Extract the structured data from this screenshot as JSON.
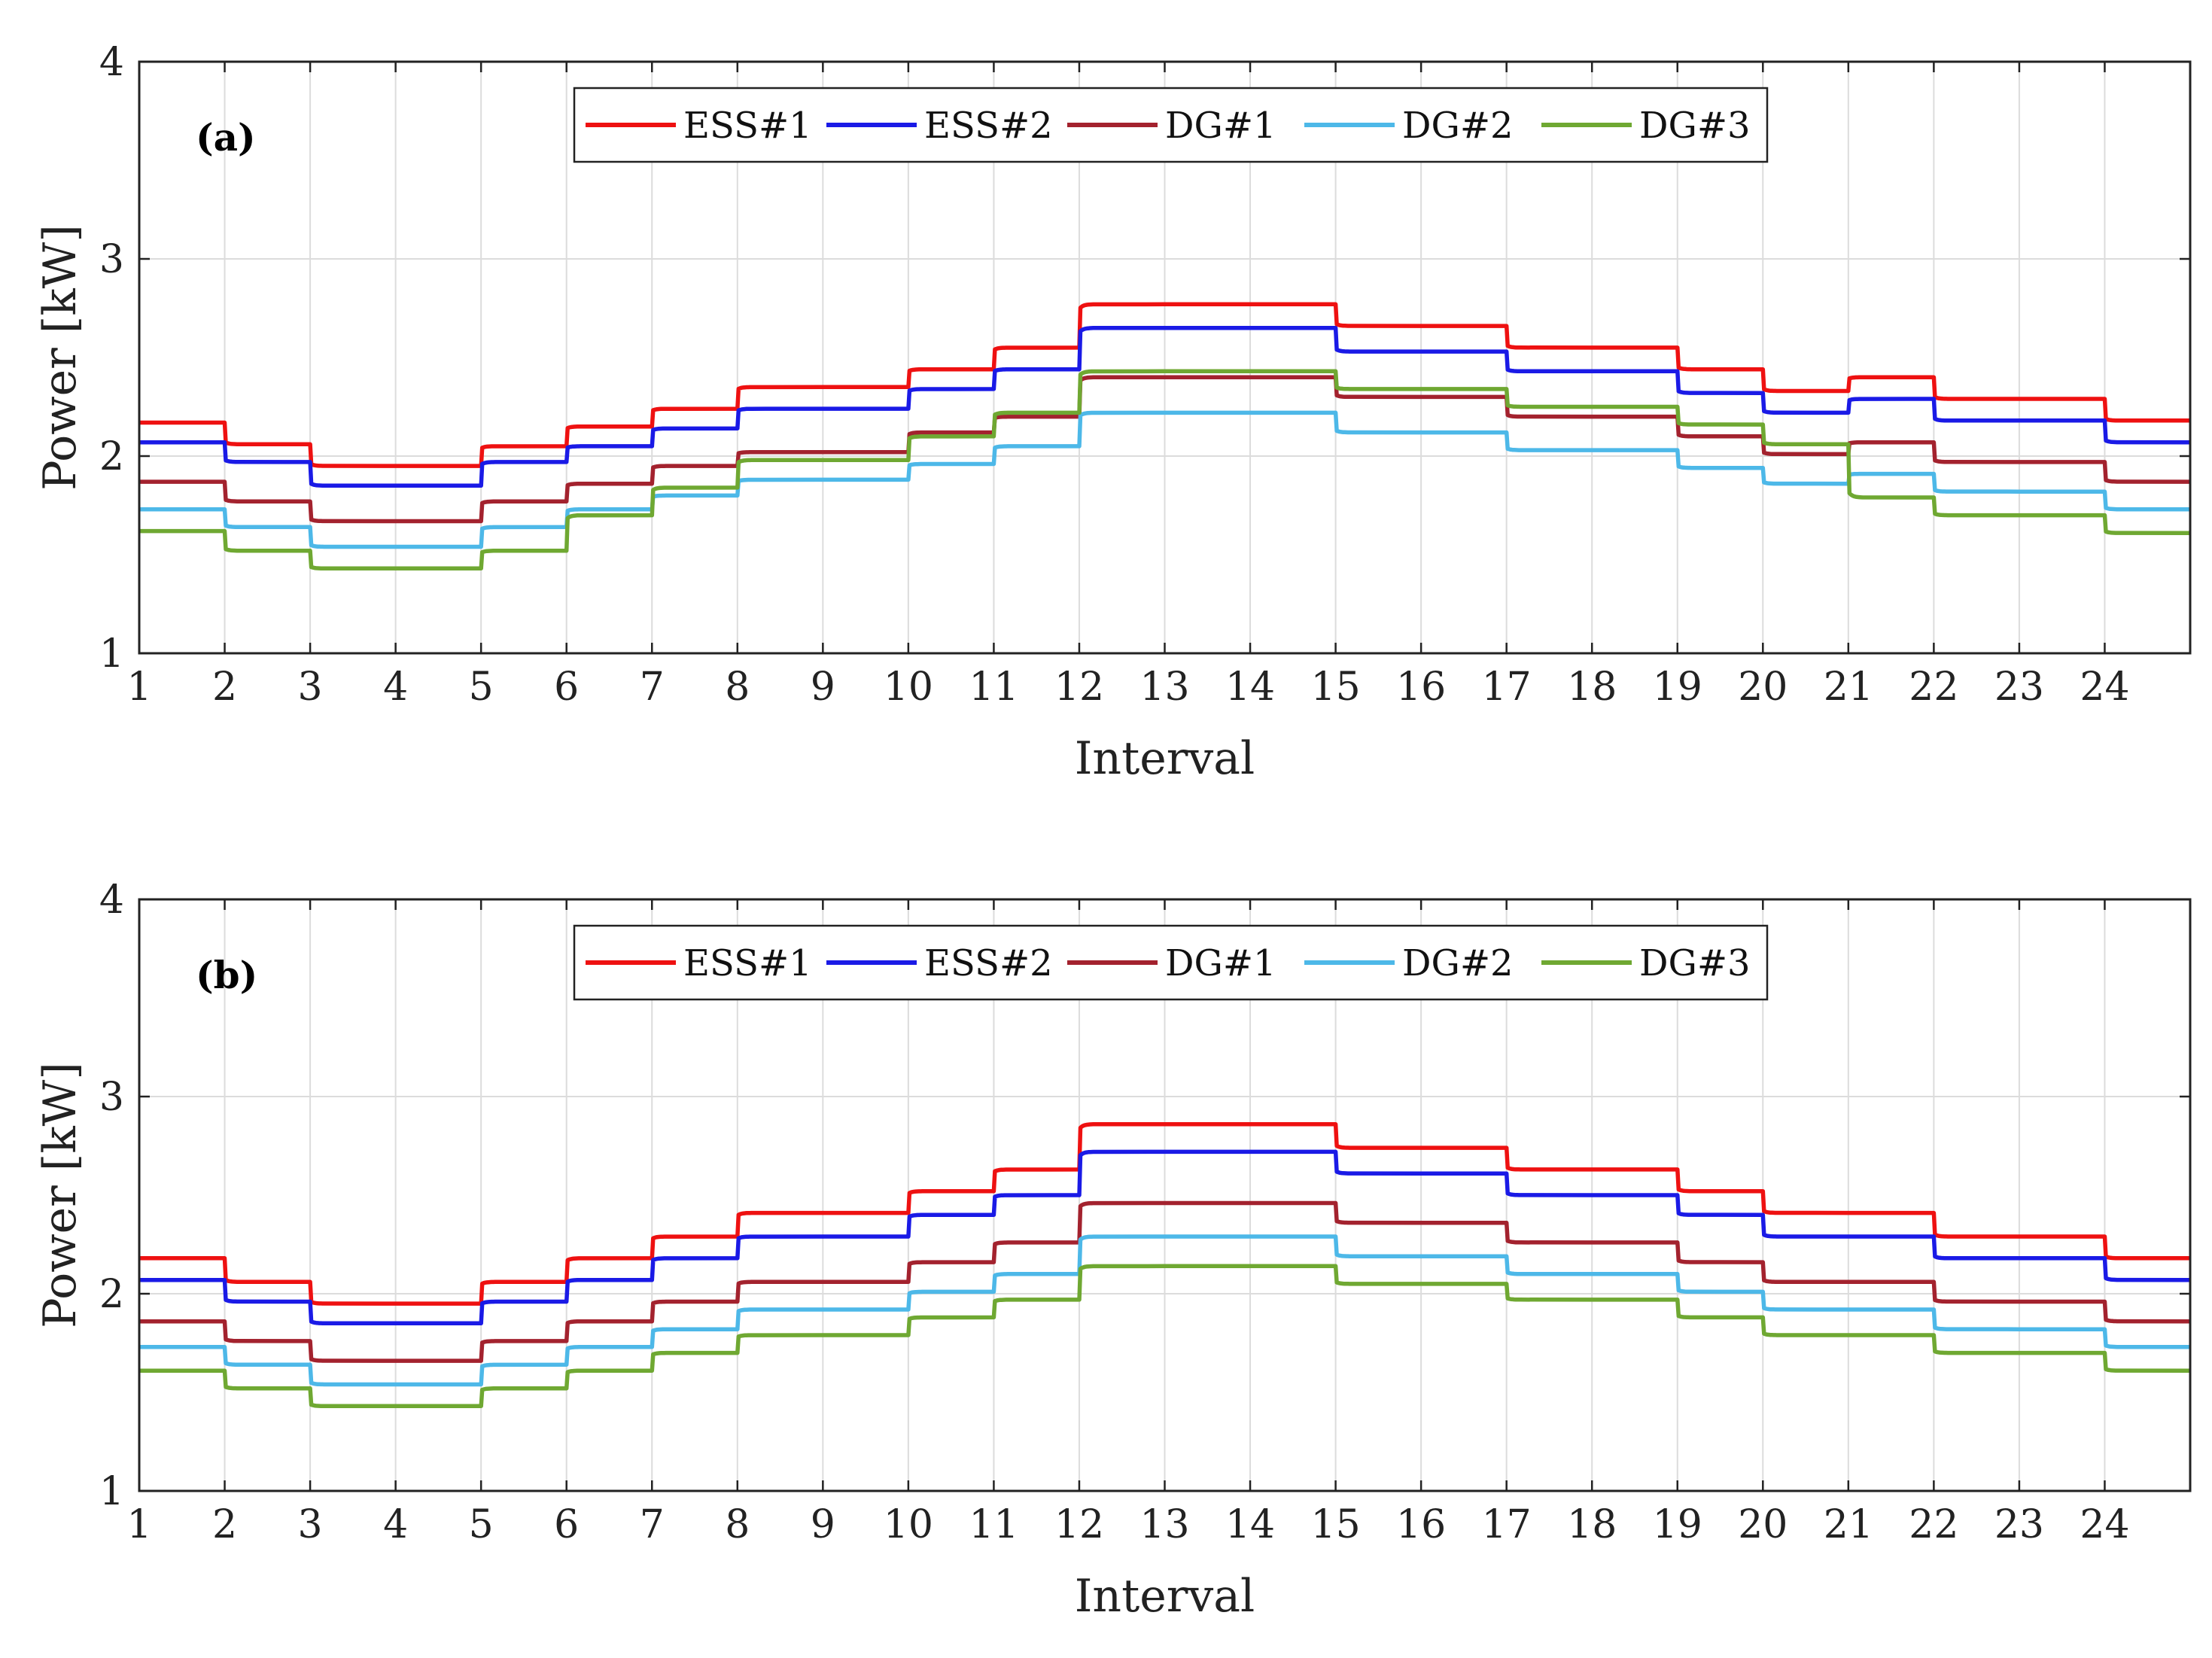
{
  "chart_data": [
    {
      "type": "line",
      "panel_label": "(a)",
      "xlabel": "Interval",
      "ylabel": "Power [kW]",
      "xlim": [
        1,
        25
      ],
      "ylim": [
        1,
        4
      ],
      "xticks": [
        "1",
        "2",
        "3",
        "4",
        "5",
        "6",
        "7",
        "8",
        "9",
        "10",
        "11",
        "12",
        "13",
        "14",
        "15",
        "16",
        "17",
        "18",
        "19",
        "20",
        "21",
        "22",
        "23",
        "24"
      ],
      "yticks": [
        "1",
        "2",
        "3",
        "4"
      ],
      "grid": true,
      "legend_position": "top-center",
      "step": true,
      "series": [
        {
          "name": "ESS#1",
          "color": "#ee1111",
          "values": [
            2.17,
            2.06,
            1.95,
            1.95,
            2.05,
            2.15,
            2.24,
            2.35,
            2.35,
            2.44,
            2.55,
            2.77,
            2.77,
            2.77,
            2.66,
            2.66,
            2.55,
            2.55,
            2.44,
            2.33,
            2.4,
            2.29,
            2.29,
            2.18
          ]
        },
        {
          "name": "ESS#2",
          "color": "#1a1ae6",
          "values": [
            2.07,
            1.97,
            1.85,
            1.85,
            1.97,
            2.05,
            2.14,
            2.24,
            2.24,
            2.34,
            2.44,
            2.65,
            2.65,
            2.65,
            2.53,
            2.53,
            2.43,
            2.43,
            2.32,
            2.22,
            2.29,
            2.18,
            2.18,
            2.07
          ]
        },
        {
          "name": "DG#1",
          "color": "#a3222e",
          "values": [
            1.87,
            1.77,
            1.67,
            1.67,
            1.77,
            1.86,
            1.95,
            2.02,
            2.02,
            2.12,
            2.2,
            2.4,
            2.4,
            2.4,
            2.3,
            2.3,
            2.2,
            2.2,
            2.1,
            2.01,
            2.07,
            1.97,
            1.97,
            1.87
          ]
        },
        {
          "name": "DG#2",
          "color": "#4db8e8",
          "values": [
            1.73,
            1.64,
            1.54,
            1.54,
            1.64,
            1.73,
            1.8,
            1.88,
            1.88,
            1.96,
            2.05,
            2.22,
            2.22,
            2.22,
            2.12,
            2.12,
            2.03,
            2.03,
            1.94,
            1.86,
            1.91,
            1.82,
            1.82,
            1.73
          ]
        },
        {
          "name": "DG#3",
          "color": "#6fa832",
          "values": [
            1.62,
            1.52,
            1.43,
            1.43,
            1.52,
            1.7,
            1.84,
            1.98,
            1.98,
            2.1,
            2.22,
            2.43,
            2.43,
            2.43,
            2.34,
            2.34,
            2.25,
            2.25,
            2.16,
            2.06,
            1.79,
            1.7,
            1.7,
            1.61
          ]
        }
      ]
    },
    {
      "type": "line",
      "panel_label": "(b)",
      "xlabel": "Interval",
      "ylabel": "Power [kW]",
      "xlim": [
        1,
        25
      ],
      "ylim": [
        1,
        4
      ],
      "xticks": [
        "1",
        "2",
        "3",
        "4",
        "5",
        "6",
        "7",
        "8",
        "9",
        "10",
        "11",
        "12",
        "13",
        "14",
        "15",
        "16",
        "17",
        "18",
        "19",
        "20",
        "21",
        "22",
        "23",
        "24"
      ],
      "yticks": [
        "1",
        "2",
        "3",
        "4"
      ],
      "grid": true,
      "legend_position": "top-center",
      "step": true,
      "series": [
        {
          "name": "ESS#1",
          "color": "#ee1111",
          "values": [
            2.18,
            2.06,
            1.95,
            1.95,
            2.06,
            2.18,
            2.29,
            2.41,
            2.41,
            2.52,
            2.63,
            2.86,
            2.86,
            2.86,
            2.74,
            2.74,
            2.63,
            2.63,
            2.52,
            2.41,
            2.41,
            2.29,
            2.29,
            2.18
          ]
        },
        {
          "name": "ESS#2",
          "color": "#1a1ae6",
          "values": [
            2.07,
            1.96,
            1.85,
            1.85,
            1.96,
            2.07,
            2.18,
            2.29,
            2.29,
            2.4,
            2.5,
            2.72,
            2.72,
            2.72,
            2.61,
            2.61,
            2.5,
            2.5,
            2.4,
            2.29,
            2.29,
            2.18,
            2.18,
            2.07
          ]
        },
        {
          "name": "DG#1",
          "color": "#a3222e",
          "values": [
            1.86,
            1.76,
            1.66,
            1.66,
            1.76,
            1.86,
            1.96,
            2.06,
            2.06,
            2.16,
            2.26,
            2.46,
            2.46,
            2.46,
            2.36,
            2.36,
            2.26,
            2.26,
            2.16,
            2.06,
            2.06,
            1.96,
            1.96,
            1.86
          ]
        },
        {
          "name": "DG#2",
          "color": "#4db8e8",
          "values": [
            1.73,
            1.64,
            1.54,
            1.54,
            1.64,
            1.73,
            1.82,
            1.92,
            1.92,
            2.01,
            2.1,
            2.29,
            2.29,
            2.29,
            2.19,
            2.19,
            2.1,
            2.1,
            2.01,
            1.92,
            1.92,
            1.82,
            1.82,
            1.73
          ]
        },
        {
          "name": "DG#3",
          "color": "#6fa832",
          "values": [
            1.61,
            1.52,
            1.43,
            1.43,
            1.52,
            1.61,
            1.7,
            1.79,
            1.79,
            1.88,
            1.97,
            2.14,
            2.14,
            2.14,
            2.05,
            2.05,
            1.97,
            1.97,
            1.88,
            1.79,
            1.79,
            1.7,
            1.7,
            1.61
          ]
        }
      ]
    }
  ]
}
